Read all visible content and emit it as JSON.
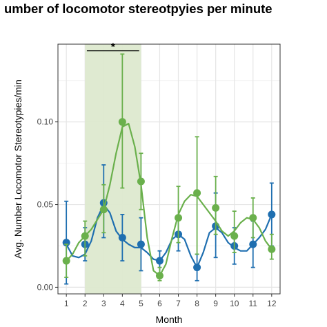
{
  "chart_data": {
    "type": "line",
    "title": "umber of locomotor stereotpyies per minute",
    "xlabel": "Month",
    "ylabel": "Avg. Number Locomotor Stereotypies/min",
    "x": [
      1,
      2,
      3,
      4,
      5,
      6,
      7,
      8,
      9,
      10,
      11,
      12
    ],
    "xlim": [
      0.55,
      12.45
    ],
    "ylim": [
      -0.004,
      0.147
    ],
    "x_ticks": [
      "1",
      "2",
      "3",
      "4",
      "5",
      "6",
      "7",
      "8",
      "9",
      "10",
      "11",
      "12"
    ],
    "y_ticks": [
      {
        "value": 0.0,
        "label": "0.00"
      },
      {
        "value": 0.05,
        "label": "0.05"
      },
      {
        "value": 0.1,
        "label": "0.10"
      }
    ],
    "grid": true,
    "highlight": {
      "x_start": 2,
      "x_end": 5,
      "color": "#dde9cf"
    },
    "significance": {
      "x_start": 2.1,
      "x_end": 4.9,
      "y": 0.143,
      "label": "*"
    },
    "series": [
      {
        "color": "#1f6fb0",
        "values": [
          0.027,
          0.026,
          0.051,
          0.03,
          0.026,
          0.016,
          0.032,
          0.012,
          0.037,
          0.025,
          0.026,
          0.044
        ],
        "error_low": [
          0.002,
          0.016,
          0.03,
          0.016,
          0.01,
          0.008,
          0.022,
          0.004,
          0.018,
          0.014,
          0.012,
          0.025
        ],
        "error_high": [
          0.052,
          0.036,
          0.074,
          0.044,
          0.042,
          0.022,
          0.042,
          0.02,
          0.057,
          0.036,
          0.04,
          0.063
        ],
        "smooth": [
          0.026,
          0.019,
          0.018,
          0.02,
          0.028,
          0.042,
          0.05,
          0.045,
          0.034,
          0.029,
          0.026,
          0.024,
          0.024,
          0.021,
          0.017,
          0.016,
          0.021,
          0.029,
          0.032,
          0.029,
          0.019,
          0.012,
          0.021,
          0.033,
          0.036,
          0.033,
          0.027,
          0.024,
          0.022,
          0.022,
          0.026,
          0.03,
          0.035,
          0.044
        ]
      },
      {
        "color": "#6ab04c",
        "values": [
          0.016,
          0.031,
          0.047,
          0.1,
          0.064,
          0.007,
          0.042,
          0.057,
          0.048,
          0.031,
          0.042,
          0.023
        ],
        "error_low": [
          0.006,
          0.019,
          0.033,
          0.06,
          0.047,
          0.004,
          0.027,
          0.02,
          0.032,
          0.021,
          0.03,
          0.017
        ],
        "error_high": [
          0.026,
          0.04,
          0.062,
          0.141,
          0.081,
          0.012,
          0.061,
          0.091,
          0.067,
          0.046,
          0.054,
          0.032
        ],
        "smooth": [
          0.016,
          0.02,
          0.027,
          0.031,
          0.035,
          0.041,
          0.047,
          0.062,
          0.081,
          0.097,
          0.099,
          0.085,
          0.062,
          0.03,
          0.01,
          0.007,
          0.014,
          0.03,
          0.044,
          0.052,
          0.056,
          0.055,
          0.05,
          0.045,
          0.04,
          0.034,
          0.031,
          0.034,
          0.039,
          0.042,
          0.041,
          0.036,
          0.028,
          0.023
        ]
      }
    ]
  }
}
